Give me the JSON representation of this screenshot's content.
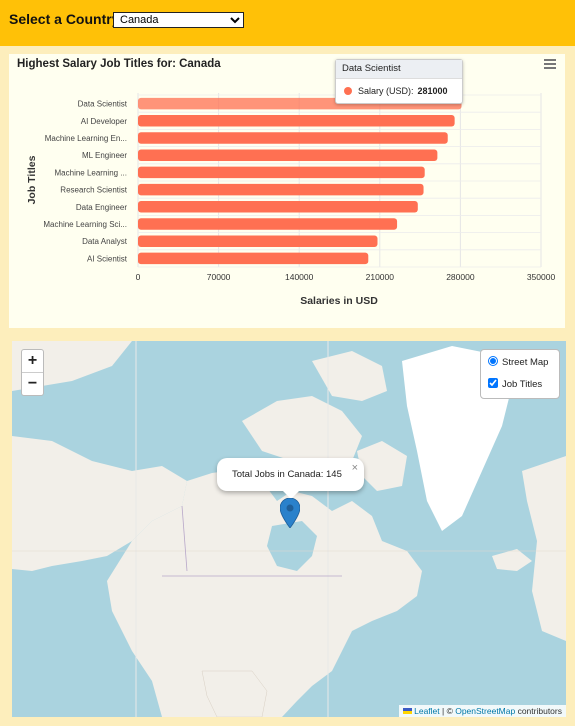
{
  "header": {
    "label": "Select a Country",
    "selected_country": "Canada"
  },
  "chart_data": {
    "type": "bar",
    "orientation": "horizontal",
    "title": "Highest Salary Job Titles for: Canada",
    "xlabel": "Salaries in USD",
    "ylabel": "Job Titles",
    "xlim": [
      0,
      350000
    ],
    "xticks": [
      "0",
      "70000",
      "140000",
      "210000",
      "280000",
      "350000"
    ],
    "categories": [
      "Data Scientist",
      "AI Developer",
      "Machine Learning En...",
      "ML Engineer",
      "Machine Learning ...",
      "Research Scientist",
      "Data Engineer",
      "Machine Learning Sci...",
      "Data Analyst",
      "AI Scientist"
    ],
    "series": [
      {
        "name": "Salary (USD)",
        "values": [
          281000,
          275000,
          269000,
          260000,
          249000,
          248000,
          243000,
          225000,
          208000,
          200000
        ]
      }
    ],
    "bar_color": "#ff7052",
    "grid": true
  },
  "tooltip": {
    "title": "Data Scientist",
    "label": "Salary (USD):",
    "value": "281000"
  },
  "map": {
    "zoom_in": "+",
    "zoom_out": "−",
    "layers": {
      "street_map": "Street Map",
      "job_titles": "Job Titles"
    },
    "popup_text": "Total Jobs in Canada: 145",
    "popup_close": "×",
    "attribution": {
      "leaflet": "Leaflet",
      "sep": " | © ",
      "osm": "OpenStreetMap",
      "tail": " contributors"
    }
  }
}
